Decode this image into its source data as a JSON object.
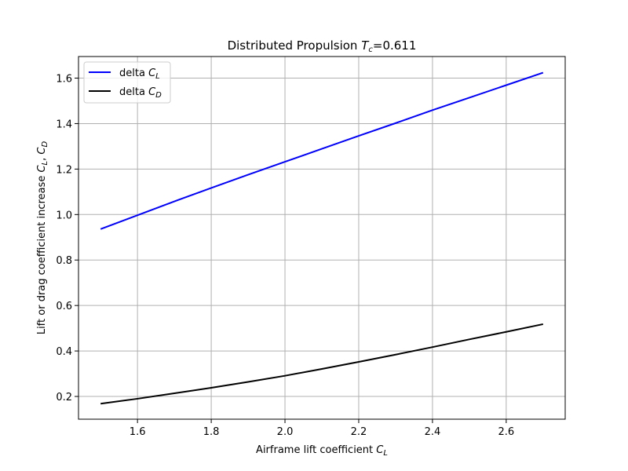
{
  "chart_data": {
    "type": "line",
    "title": {
      "prefix": "Distributed Propulsion ",
      "symbol": "T",
      "subscript": "c",
      "suffix": "=0.611"
    },
    "xlabel": {
      "prefix": "Airframe lift coefficient ",
      "symbol": "C",
      "subscript": "L"
    },
    "ylabel": {
      "prefix": "Lift or drag coefficient increase ",
      "symbol1": "C",
      "sub1": "L",
      "sep": ", ",
      "symbol2": "C",
      "sub2": "D"
    },
    "xlim": [
      1.44,
      2.76
    ],
    "ylim": [
      0.1,
      1.695
    ],
    "xticks": [
      1.6,
      1.8,
      2.0,
      2.2,
      2.4,
      2.6
    ],
    "xtick_labels": [
      "1.6",
      "1.8",
      "2.0",
      "2.2",
      "2.4",
      "2.6"
    ],
    "yticks": [
      0.2,
      0.4,
      0.6,
      0.8,
      1.0,
      1.2,
      1.4,
      1.6
    ],
    "ytick_labels": [
      "0.2",
      "0.4",
      "0.6",
      "0.8",
      "1.0",
      "1.2",
      "1.4",
      "1.6"
    ],
    "grid": true,
    "legend_position": "top-left",
    "series": [
      {
        "name": {
          "prefix": "delta ",
          "symbol": "C",
          "subscript": "L"
        },
        "color": "#0000ff",
        "x": [
          1.5,
          1.6,
          1.7,
          1.8,
          1.9,
          2.0,
          2.1,
          2.2,
          2.3,
          2.4,
          2.5,
          2.6,
          2.7
        ],
        "y": [
          0.936,
          0.997,
          1.058,
          1.117,
          1.175,
          1.232,
          1.289,
          1.346,
          1.402,
          1.459,
          1.514,
          1.569,
          1.624
        ]
      },
      {
        "name": {
          "prefix": "delta ",
          "symbol": "C",
          "subscript": "D"
        },
        "color": "#000000",
        "x": [
          1.5,
          1.6,
          1.7,
          1.8,
          1.9,
          2.0,
          2.1,
          2.2,
          2.3,
          2.4,
          2.5,
          2.6,
          2.7
        ],
        "y": [
          0.168,
          0.19,
          0.214,
          0.238,
          0.264,
          0.291,
          0.321,
          0.352,
          0.384,
          0.417,
          0.451,
          0.484,
          0.518
        ]
      }
    ]
  }
}
